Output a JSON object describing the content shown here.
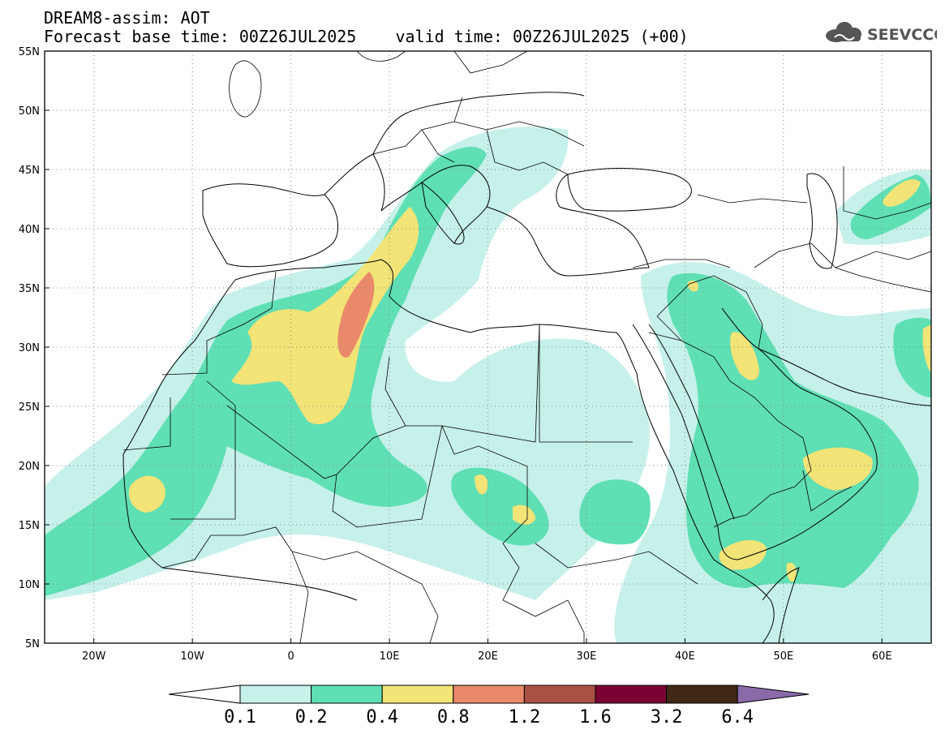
{
  "title": {
    "line1": "DREAM8-assim: AOT",
    "line2": "Forecast base time: 00Z26JUL2025    valid time: 00Z26JUL2025 (+00)"
  },
  "logo": {
    "text": "SEEVCCC",
    "icon": "cloud-icon",
    "color": "#555555"
  },
  "map": {
    "lon_range": [
      -25,
      65
    ],
    "lat_range": [
      5,
      55
    ],
    "lon_ticks": [
      {
        "value": -20,
        "label": "20W"
      },
      {
        "value": -10,
        "label": "10W"
      },
      {
        "value": 0,
        "label": "0"
      },
      {
        "value": 10,
        "label": "10E"
      },
      {
        "value": 20,
        "label": "20E"
      },
      {
        "value": 30,
        "label": "30E"
      },
      {
        "value": 40,
        "label": "40E"
      },
      {
        "value": 50,
        "label": "50E"
      },
      {
        "value": 60,
        "label": "60E"
      }
    ],
    "lat_ticks": [
      {
        "value": 55,
        "label": "55N"
      },
      {
        "value": 50,
        "label": "50N"
      },
      {
        "value": 45,
        "label": "45N"
      },
      {
        "value": 40,
        "label": "40N"
      },
      {
        "value": 35,
        "label": "35N"
      },
      {
        "value": 30,
        "label": "30N"
      },
      {
        "value": 25,
        "label": "25N"
      },
      {
        "value": 20,
        "label": "20N"
      },
      {
        "value": 15,
        "label": "15N"
      },
      {
        "value": 10,
        "label": "10N"
      },
      {
        "value": 5,
        "label": "5N"
      }
    ]
  },
  "colorbar": {
    "levels": [
      "0.1",
      "0.2",
      "0.4",
      "0.8",
      "1.2",
      "1.6",
      "3.2",
      "6.4"
    ],
    "colors": [
      "#ffffff",
      "#c6f1ea",
      "#5fdfb4",
      "#f2e477",
      "#e9896a",
      "#a95143",
      "#7b0333",
      "#3f2916",
      "#8a6aa8"
    ]
  }
}
